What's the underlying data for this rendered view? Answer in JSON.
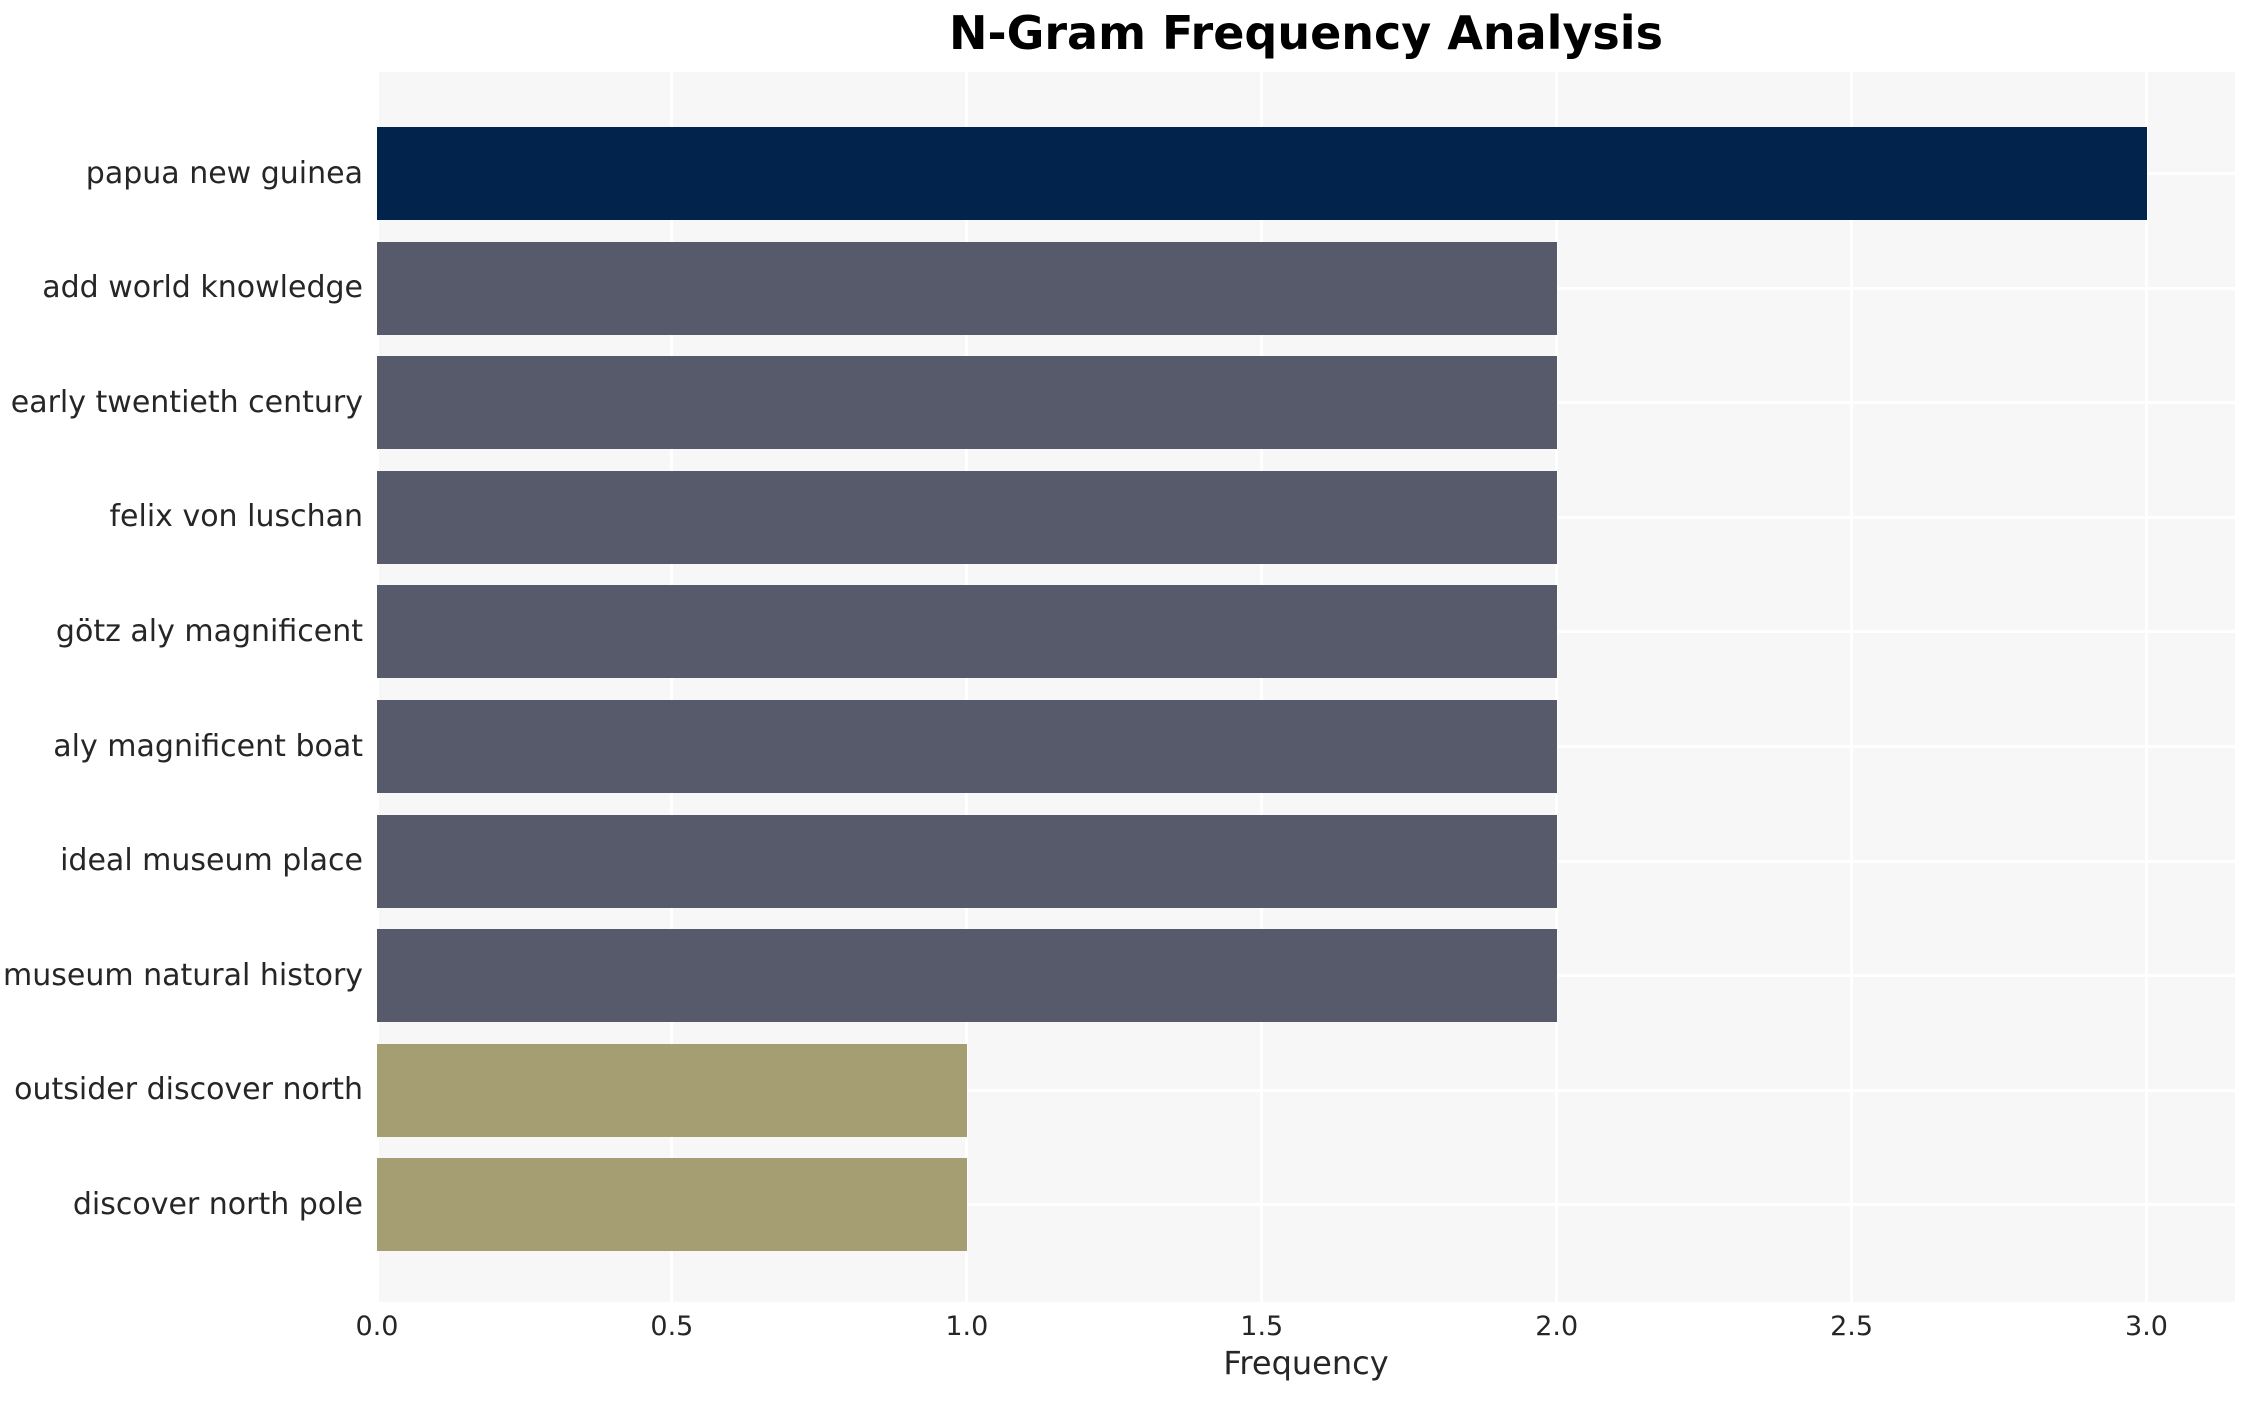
{
  "chart_data": {
    "type": "bar",
    "orientation": "horizontal",
    "title": "N-Gram Frequency Analysis",
    "xlabel": "Frequency",
    "ylabel": "",
    "categories": [
      "papua new guinea",
      "add world knowledge",
      "early twentieth century",
      "felix von luschan",
      "götz aly magnificent",
      "aly magnificent boat",
      "ideal museum place",
      "museum natural history",
      "outsider discover north",
      "discover north pole"
    ],
    "values": [
      3,
      2,
      2,
      2,
      2,
      2,
      2,
      2,
      1,
      1
    ],
    "bar_colors": [
      "#02234c",
      "#565a6a",
      "#565a6a",
      "#565a6a",
      "#565a6a",
      "#565a6a",
      "#565a6a",
      "#565a6a",
      "#a59e72",
      "#a59e72"
    ],
    "xticks": [
      0,
      0.5,
      1,
      1.5,
      2,
      2.5,
      3
    ],
    "xtick_labels": [
      "0.0",
      "0.5",
      "1.0",
      "1.5",
      "2.0",
      "2.5",
      "3.0"
    ],
    "xlim": [
      0,
      3.15
    ],
    "grid": true,
    "legend": false,
    "colors": {
      "plot_background": "#f7f7f8",
      "grid_color": "#ffffff",
      "tick_text_color": "#262626",
      "title_color": "#000000"
    }
  }
}
